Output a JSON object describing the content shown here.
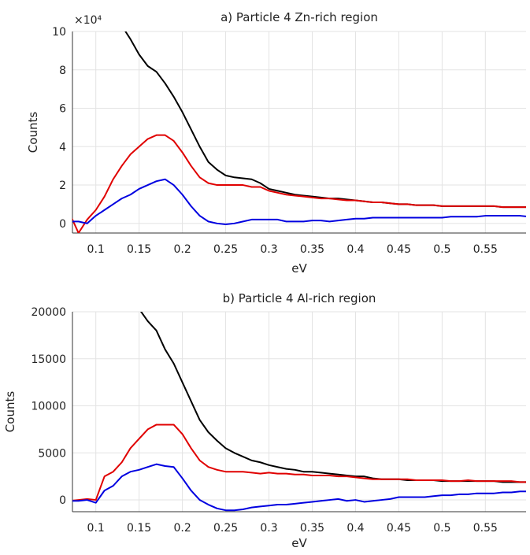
{
  "chart_data": [
    {
      "type": "line",
      "title": "a) Particle 4 Zn-rich region",
      "xlabel": "eV",
      "ylabel": "Counts",
      "y_multiplier": "×10⁴",
      "x": [
        0.07,
        0.08,
        0.09,
        0.1,
        0.11,
        0.12,
        0.13,
        0.14,
        0.15,
        0.16,
        0.17,
        0.18,
        0.19,
        0.2,
        0.21,
        0.22,
        0.23,
        0.24,
        0.25,
        0.26,
        0.27,
        0.28,
        0.29,
        0.3,
        0.31,
        0.32,
        0.33,
        0.34,
        0.35,
        0.36,
        0.37,
        0.38,
        0.39,
        0.4,
        0.41,
        0.42,
        0.43,
        0.44,
        0.45,
        0.46,
        0.47,
        0.48,
        0.49,
        0.5,
        0.51,
        0.52,
        0.53,
        0.54,
        0.55,
        0.56,
        0.57,
        0.58,
        0.59,
        0.6
      ],
      "series": [
        {
          "color": "#000000",
          "values": [
            null,
            null,
            null,
            null,
            null,
            null,
            10.3,
            9.6,
            8.8,
            8.2,
            7.9,
            7.3,
            6.6,
            5.8,
            4.9,
            4.0,
            3.2,
            2.8,
            2.5,
            2.4,
            2.35,
            2.3,
            2.1,
            1.8,
            1.7,
            1.6,
            1.5,
            1.45,
            1.4,
            1.35,
            1.3,
            1.3,
            1.25,
            1.2,
            1.15,
            1.1,
            1.1,
            1.05,
            1.0,
            1.0,
            0.95,
            0.95,
            0.95,
            0.9,
            0.9,
            0.9,
            0.9,
            0.9,
            0.9,
            0.9,
            0.85,
            0.85,
            0.85,
            0.85
          ]
        },
        {
          "color": "#e00000",
          "values": [
            0.5,
            -0.5,
            0.2,
            0.7,
            1.4,
            2.3,
            3.0,
            3.6,
            4.0,
            4.4,
            4.6,
            4.6,
            4.3,
            3.7,
            3.0,
            2.4,
            2.1,
            2.0,
            2.0,
            2.0,
            2.0,
            1.9,
            1.9,
            1.7,
            1.6,
            1.5,
            1.45,
            1.4,
            1.35,
            1.3,
            1.3,
            1.25,
            1.2,
            1.2,
            1.15,
            1.1,
            1.1,
            1.05,
            1.0,
            1.0,
            0.95,
            0.95,
            0.95,
            0.9,
            0.9,
            0.9,
            0.9,
            0.9,
            0.9,
            0.9,
            0.85,
            0.85,
            0.85,
            0.85
          ]
        },
        {
          "color": "#0000e0",
          "values": [
            0.1,
            0.1,
            0.0,
            0.4,
            0.7,
            1.0,
            1.3,
            1.5,
            1.8,
            2.0,
            2.2,
            2.3,
            2.0,
            1.5,
            0.9,
            0.4,
            0.1,
            0.0,
            -0.05,
            0.0,
            0.1,
            0.2,
            0.2,
            0.2,
            0.2,
            0.1,
            0.1,
            0.1,
            0.15,
            0.15,
            0.1,
            0.15,
            0.2,
            0.25,
            0.25,
            0.3,
            0.3,
            0.3,
            0.3,
            0.3,
            0.3,
            0.3,
            0.3,
            0.3,
            0.35,
            0.35,
            0.35,
            0.35,
            0.4,
            0.4,
            0.4,
            0.4,
            0.4,
            0.35
          ]
        }
      ],
      "xlim": [
        0.073,
        0.597
      ],
      "xticks": [
        0.1,
        0.15,
        0.2,
        0.25,
        0.3,
        0.35,
        0.4,
        0.45,
        0.5,
        0.55
      ],
      "ylim": [
        -0.5,
        10
      ],
      "yticks": [
        0,
        2,
        4,
        6,
        8,
        10
      ],
      "grid": true
    },
    {
      "type": "line",
      "title": "b) Particle 4 Al-rich region",
      "xlabel": "eV",
      "ylabel": "Counts",
      "x": [
        0.07,
        0.08,
        0.09,
        0.1,
        0.11,
        0.12,
        0.13,
        0.14,
        0.15,
        0.16,
        0.17,
        0.18,
        0.19,
        0.2,
        0.21,
        0.22,
        0.23,
        0.24,
        0.25,
        0.26,
        0.27,
        0.28,
        0.29,
        0.3,
        0.31,
        0.32,
        0.33,
        0.34,
        0.35,
        0.36,
        0.37,
        0.38,
        0.39,
        0.4,
        0.41,
        0.42,
        0.43,
        0.44,
        0.45,
        0.46,
        0.47,
        0.48,
        0.49,
        0.5,
        0.51,
        0.52,
        0.53,
        0.54,
        0.55,
        0.56,
        0.57,
        0.58,
        0.59,
        0.6
      ],
      "series": [
        {
          "color": "#000000",
          "values": [
            null,
            null,
            null,
            null,
            null,
            null,
            null,
            null,
            20300,
            19000,
            18000,
            16000,
            14500,
            12500,
            10500,
            8500,
            7200,
            6300,
            5500,
            5000,
            4600,
            4200,
            4000,
            3700,
            3500,
            3300,
            3200,
            3000,
            3000,
            2900,
            2800,
            2700,
            2600,
            2500,
            2500,
            2300,
            2200,
            2200,
            2200,
            2100,
            2100,
            2100,
            2100,
            2000,
            2000,
            2000,
            2000,
            2000,
            2000,
            2000,
            1900,
            1900,
            1900,
            1900
          ]
        },
        {
          "color": "#e00000",
          "values": [
            -100,
            0,
            100,
            0,
            2500,
            3000,
            4000,
            5500,
            6500,
            7500,
            8000,
            8000,
            8000,
            7000,
            5500,
            4200,
            3500,
            3200,
            3000,
            3000,
            3000,
            2900,
            2800,
            2900,
            2800,
            2800,
            2700,
            2700,
            2600,
            2600,
            2600,
            2500,
            2500,
            2400,
            2300,
            2200,
            2200,
            2200,
            2200,
            2200,
            2100,
            2100,
            2100,
            2100,
            2000,
            2000,
            2100,
            2000,
            2000,
            2000,
            2000,
            2000,
            1900,
            1900
          ]
        },
        {
          "color": "#0000e0",
          "values": [
            -100,
            -100,
            0,
            -300,
            1000,
            1500,
            2500,
            3000,
            3200,
            3500,
            3800,
            3600,
            3500,
            2300,
            1000,
            0,
            -500,
            -900,
            -1100,
            -1100,
            -1000,
            -800,
            -700,
            -600,
            -500,
            -500,
            -400,
            -300,
            -200,
            -100,
            0,
            100,
            -100,
            0,
            -200,
            -100,
            0,
            100,
            300,
            300,
            300,
            300,
            400,
            500,
            500,
            600,
            600,
            700,
            700,
            700,
            800,
            800,
            900,
            900
          ]
        }
      ],
      "xlim": [
        0.073,
        0.597
      ],
      "xticks": [
        0.1,
        0.15,
        0.2,
        0.25,
        0.3,
        0.35,
        0.4,
        0.45,
        0.5,
        0.55
      ],
      "ylim": [
        -1250,
        20000
      ],
      "yticks": [
        0,
        5000,
        10000,
        15000,
        20000
      ],
      "grid": true
    }
  ]
}
